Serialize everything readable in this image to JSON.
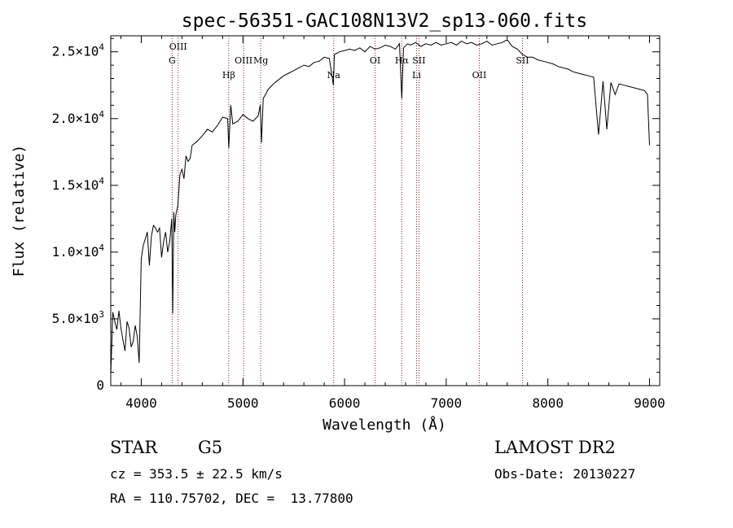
{
  "chart_data": {
    "type": "line",
    "title": "spec-56351-GAC108N13V2_sp13-060.fits",
    "xlabel": "Wavelength (Å)",
    "ylabel": "Flux (relative)",
    "xlim": [
      3700,
      9100
    ],
    "ylim": [
      0,
      26200
    ],
    "x_ticks": [
      4000,
      5000,
      6000,
      7000,
      8000,
      9000
    ],
    "x_tick_labels": [
      "4000",
      "5000",
      "6000",
      "7000",
      "8000",
      "9000"
    ],
    "y_ticks": [
      0,
      5000,
      10000,
      15000,
      20000,
      25000
    ],
    "y_tick_labels": [
      {
        "mant": "0",
        "exp": ""
      },
      {
        "mant": "5.0×10",
        "exp": "3"
      },
      {
        "mant": "1.0×10",
        "exp": "4"
      },
      {
        "mant": "1.5×10",
        "exp": "4"
      },
      {
        "mant": "2.0×10",
        "exp": "4"
      },
      {
        "mant": "2.5×10",
        "exp": "4"
      }
    ],
    "line_color": "#000000",
    "marker_color": "#8b1a1a",
    "grid": false,
    "series": [
      {
        "x": [
          3700,
          3720,
          3740,
          3760,
          3780,
          3800,
          3820,
          3840,
          3860,
          3880,
          3900,
          3920,
          3940,
          3960,
          3980,
          4000,
          4020,
          4040,
          4060,
          4080,
          4100,
          4120,
          4140,
          4160,
          4180,
          4200,
          4220,
          4240,
          4260,
          4280,
          4300,
          4310,
          4320,
          4330,
          4340,
          4360,
          4380,
          4400,
          4420,
          4440,
          4460,
          4480,
          4500,
          4550,
          4600,
          4650,
          4700,
          4750,
          4800,
          4850,
          4861,
          4880,
          4900,
          4950,
          5000,
          5050,
          5100,
          5150,
          5170,
          5183,
          5200,
          5250,
          5300,
          5350,
          5400,
          5450,
          5500,
          5550,
          5600,
          5650,
          5700,
          5750,
          5800,
          5850,
          5890,
          5900,
          5950,
          6000,
          6050,
          6100,
          6150,
          6200,
          6250,
          6300,
          6350,
          6400,
          6450,
          6500,
          6540,
          6563,
          6580,
          6620,
          6650,
          6700,
          6750,
          6800,
          6850,
          6900,
          6950,
          7000,
          7050,
          7100,
          7150,
          7200,
          7250,
          7300,
          7350,
          7400,
          7450,
          7500,
          7550,
          7600,
          7650,
          7700,
          7750,
          7800,
          7850,
          7900,
          7950,
          8000,
          8050,
          8100,
          8150,
          8200,
          8250,
          8300,
          8350,
          8400,
          8450,
          8498,
          8542,
          8580,
          8620,
          8662,
          8700,
          8750,
          8800,
          8850,
          8900,
          8950,
          8980,
          9000
        ],
        "y": [
          800,
          5500,
          4800,
          4200,
          5600,
          4300,
          3400,
          2600,
          4800,
          4300,
          2900,
          3300,
          4500,
          3700,
          1700,
          9500,
          10500,
          11000,
          11500,
          9000,
          11200,
          12000,
          11800,
          11500,
          11800,
          9600,
          10800,
          11500,
          10000,
          10800,
          12500,
          5400,
          13000,
          11500,
          12800,
          13500,
          15800,
          16200,
          15500,
          17200,
          16800,
          17000,
          18000,
          18300,
          18700,
          19200,
          19000,
          19500,
          20100,
          20000,
          17800,
          21000,
          19600,
          19800,
          20300,
          20000,
          19800,
          20200,
          21000,
          18200,
          21500,
          22200,
          22600,
          22900,
          23200,
          23400,
          23600,
          23800,
          24000,
          23900,
          24200,
          24300,
          24600,
          24500,
          22500,
          24800,
          25000,
          25100,
          25200,
          25100,
          25300,
          25000,
          25400,
          25200,
          25300,
          25500,
          25400,
          25200,
          25600,
          21500,
          25300,
          25600,
          25500,
          25700,
          25400,
          25600,
          25500,
          25700,
          25500,
          25600,
          25700,
          25500,
          25800,
          25600,
          25700,
          25500,
          25600,
          25800,
          25500,
          25600,
          25700,
          25900,
          25400,
          25200,
          24800,
          24600,
          24600,
          24400,
          24300,
          24200,
          24100,
          23900,
          23800,
          23700,
          23500,
          23400,
          23300,
          23200,
          23100,
          18800,
          22800,
          19200,
          22700,
          21800,
          22600,
          22500,
          22400,
          22300,
          22200,
          22100,
          21800,
          18000
        ]
      }
    ],
    "lines": [
      {
        "label": "G",
        "x": 4304,
        "row": 1
      },
      {
        "label": "OIII",
        "x": 4363,
        "row": 0
      },
      {
        "label": "Hβ",
        "x": 4861,
        "row": 3
      },
      {
        "label": "OIII",
        "x": 5007,
        "row": 2
      },
      {
        "label": "Mg",
        "x": 5175,
        "row": 1
      },
      {
        "label": "Na",
        "x": 5893,
        "row": 3
      },
      {
        "label": "OI",
        "x": 6300,
        "row": 2
      },
      {
        "label": "Hα",
        "x": 6563,
        "row": 1
      },
      {
        "label": "Li",
        "x": 6708,
        "row": 3
      },
      {
        "label": "SII",
        "x": 6731,
        "row": 1
      },
      {
        "label": "OII",
        "x": 7325,
        "row": 3
      },
      {
        "label": "SII",
        "x": 7750,
        "row": 2
      }
    ]
  },
  "info": {
    "class": "STAR",
    "subclass": "G5",
    "survey": "LAMOST DR2",
    "cz": "cz = 353.5 ± 22.5 km/s",
    "obs_date": "Obs-Date: 20130227",
    "radec": "RA = 110.75702, DEC =  13.77800"
  }
}
